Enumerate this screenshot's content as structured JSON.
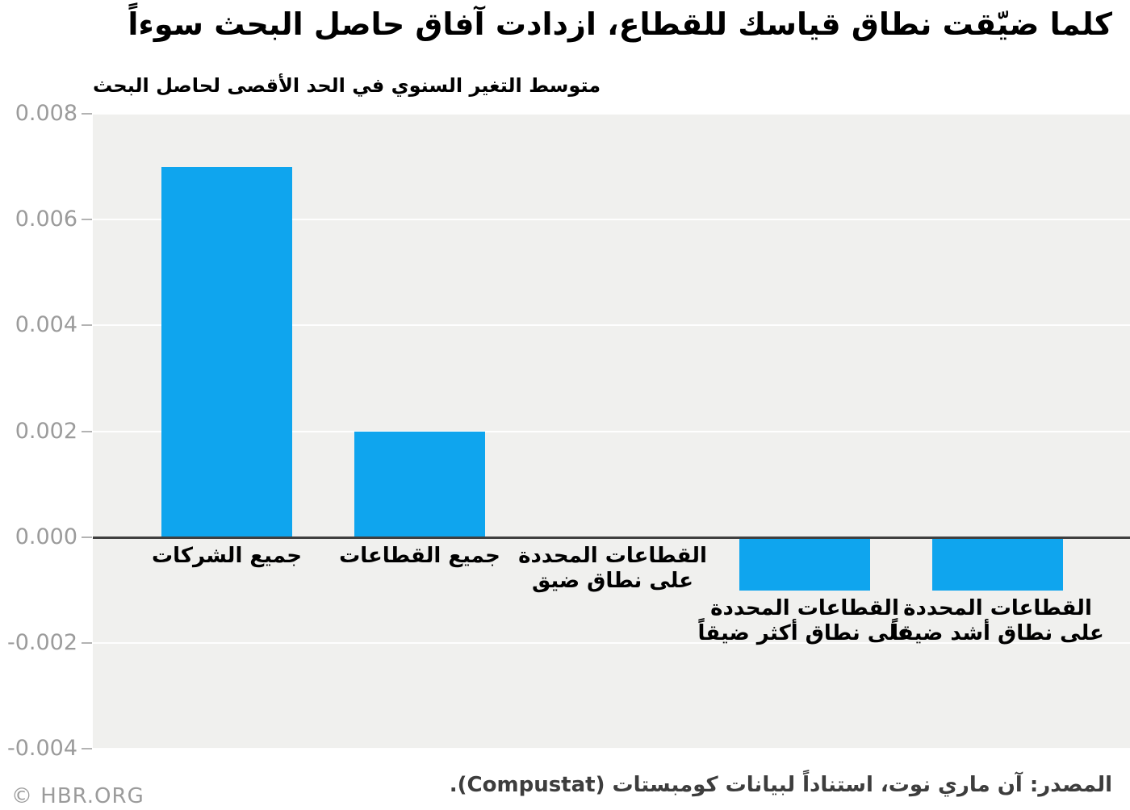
{
  "title": "كلما ضيّقت نطاق قياسك للقطاع، ازدادت آفاق حاصل البحث سوءاً",
  "subtitle": "متوسط التغير السنوي في الحد الأقصى لحاصل البحث",
  "source": "المصدر: آن ماري نوت، استناداً لبيانات كومبستات (Compustat).",
  "watermark": "© HBR.ORG",
  "colors": {
    "bar": "#0fa5ee",
    "plot_background": "#f0f0ee",
    "grid_line": "rgba(255,255,255,0.9)",
    "zero_line": "#3f3f3f",
    "axis_label": "#9b9b9b",
    "category_label": "#000000",
    "source_text": "#3d3d3d"
  },
  "chart_data": {
    "type": "bar",
    "direction": "rtl",
    "title": "كلما ضيّقت نطاق قياسك للقطاع، ازدادت آفاق حاصل البحث سوءاً",
    "ylabel": "متوسط التغير السنوي في الحد الأقصى لحاصل البحث",
    "xlabel": "",
    "categories": [
      "جميع الشركات",
      "جميع القطاعات",
      "القطاعات المحددة على نطاق ضيق",
      "القطاعات المحددة على نطاق أكثر ضيقاً",
      "القطاعات المحددة على نطاق أشد ضيقاً"
    ],
    "category_label_lines": [
      [
        "جميع الشركات"
      ],
      [
        "جميع القطاعات"
      ],
      [
        "القطاعات المحددة",
        "على نطاق ضيق"
      ],
      [
        "القطاعات المحددة",
        "على نطاق أكثر ضيقاً"
      ],
      [
        "القطاعات المحددة",
        "على نطاق أشد ضيقاً"
      ]
    ],
    "values": [
      0.007,
      0.002,
      0.0,
      -0.001,
      -0.001
    ],
    "y_ticks": [
      0.008,
      0.006,
      0.004,
      0.002,
      0.0,
      -0.002,
      -0.004
    ],
    "y_tick_labels": [
      "0.008",
      "0.006",
      "0.004",
      "0.002",
      "0.000",
      "-0.002",
      "-0.004"
    ],
    "ylim": [
      -0.004,
      0.008
    ],
    "grid": true,
    "legend": false
  }
}
